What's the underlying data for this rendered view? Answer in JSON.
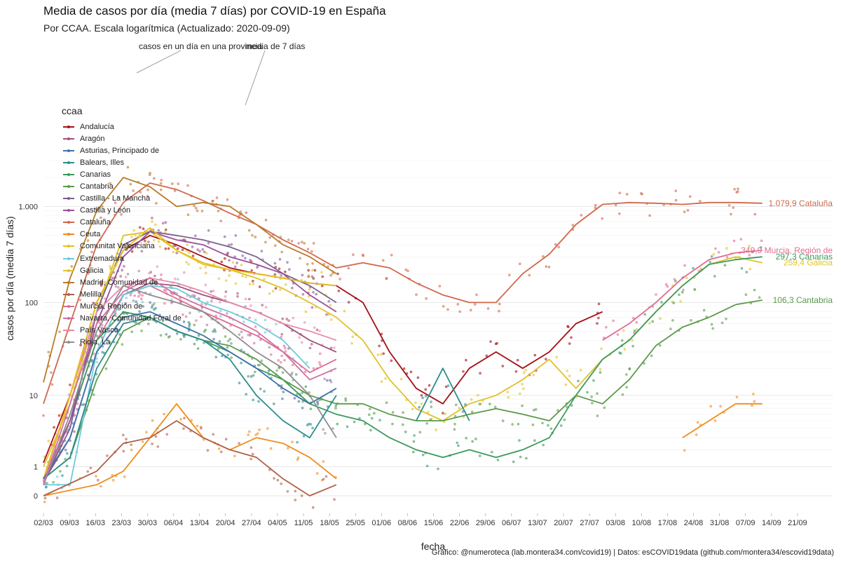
{
  "header": {
    "title": "Media de casos por día (media 7 días) por COVID-19 en España",
    "subtitle": "Por CCAA. Escala logarítmica  (Actualizado: 2020-09-09)"
  },
  "caption": "Gráfico: @numeroteca (lab.montera34.com/covid19) | Datos: esCOVID19data (github.com/montera34/escovid19data)",
  "legend": {
    "title": "ccaa",
    "items": [
      {
        "label": "Andalucía",
        "color": "#a50f15"
      },
      {
        "label": "Aragón",
        "color": "#a0517a"
      },
      {
        "label": "Asturias, Principado de",
        "color": "#3f72a8"
      },
      {
        "label": "Balears, Illes",
        "color": "#2c8c8c"
      },
      {
        "label": "Canarias",
        "color": "#3a9a5b"
      },
      {
        "label": "Cantabria",
        "color": "#5b9a4b"
      },
      {
        "label": "Castilla - La Mancha",
        "color": "#7c5f92"
      },
      {
        "label": "Castilla y León",
        "color": "#9a4e9a"
      },
      {
        "label": "Cataluña",
        "color": "#d0684a"
      },
      {
        "label": "Ceuta",
        "color": "#f08c1a"
      },
      {
        "label": "Comunitat Valenciana",
        "color": "#e8c21a"
      },
      {
        "label": "Extremadura",
        "color": "#6ecbdc"
      },
      {
        "label": "Galicia",
        "color": "#e0c12a"
      },
      {
        "label": "Madrid, Comunidad de",
        "color": "#b87b2a"
      },
      {
        "label": "Melilla",
        "color": "#b06048"
      },
      {
        "label": "Murcia, Región de",
        "color": "#e06c93"
      },
      {
        "label": "Navarra, Comunidad Foral de",
        "color": "#d070a0"
      },
      {
        "label": "País Vasco",
        "color": "#e88aa8"
      },
      {
        "label": "Rioja, La",
        "color": "#8d8d8d"
      }
    ]
  },
  "annotations": {
    "points": "casos en un día en una provincia",
    "line": "media de 7 días"
  },
  "chart_data": {
    "type": "line",
    "title": "Media de casos por día (media 7 días) por COVID-19 en España",
    "subtitle": "Por CCAA. Escala logarítmica  (Actualizado: 2020-09-09)",
    "xlabel": "fecha",
    "ylabel": "casos por día (media 7 días)",
    "y_scale": "log",
    "ylim": [
      0,
      4000
    ],
    "y_ticks": [
      {
        "value": 0,
        "label": "0"
      },
      {
        "value": 1,
        "label": "1"
      },
      {
        "value": 10,
        "label": "10"
      },
      {
        "value": 100,
        "label": "100"
      },
      {
        "value": 1000,
        "label": "1.000"
      }
    ],
    "x_range": [
      "2020-03-02",
      "2020-09-24"
    ],
    "x_ticks": [
      "02/03",
      "09/03",
      "16/03",
      "23/03",
      "30/03",
      "06/04",
      "13/04",
      "20/04",
      "27/04",
      "04/05",
      "11/05",
      "18/05",
      "25/05",
      "01/06",
      "08/06",
      "15/06",
      "22/06",
      "29/06",
      "06/07",
      "13/07",
      "20/07",
      "27/07",
      "03/08",
      "10/08",
      "17/08",
      "24/08",
      "31/08",
      "07/09",
      "14/09",
      "21/09"
    ],
    "grid": true,
    "legend_position": "left",
    "series": [
      {
        "name": "Cataluña",
        "color": "#d0684a",
        "end_label": "1.079,9 Cataluña",
        "x": [
          "2020-03-02",
          "2020-03-09",
          "2020-03-16",
          "2020-03-23",
          "2020-03-30",
          "2020-04-06",
          "2020-04-13",
          "2020-04-20",
          "2020-04-27",
          "2020-05-04",
          "2020-05-11",
          "2020-05-18",
          "2020-05-25",
          "2020-06-01",
          "2020-06-08",
          "2020-06-15",
          "2020-06-22",
          "2020-06-29",
          "2020-07-06",
          "2020-07-13",
          "2020-07-20",
          "2020-07-27",
          "2020-08-03",
          "2020-08-10",
          "2020-08-17",
          "2020-08-24",
          "2020-08-31",
          "2020-09-07"
        ],
        "y": [
          8,
          60,
          400,
          1100,
          1750,
          1500,
          1150,
          850,
          650,
          450,
          330,
          230,
          260,
          230,
          160,
          120,
          100,
          100,
          200,
          320,
          650,
          1050,
          1100,
          1080,
          1050,
          1100,
          1100,
          1080
        ]
      },
      {
        "name": "Madrid, Comunidad de",
        "color": "#b87b2a",
        "x": [
          "2020-03-02",
          "2020-03-09",
          "2020-03-16",
          "2020-03-23",
          "2020-03-30",
          "2020-04-06",
          "2020-04-13",
          "2020-04-20",
          "2020-04-27",
          "2020-05-04",
          "2020-05-11",
          "2020-05-18"
        ],
        "y": [
          14,
          180,
          900,
          2000,
          1600,
          1000,
          1100,
          1000,
          650,
          400,
          300,
          200
        ]
      },
      {
        "name": "Andalucía",
        "color": "#a50f15",
        "x": [
          "2020-03-02",
          "2020-03-09",
          "2020-03-16",
          "2020-03-23",
          "2020-03-30",
          "2020-04-06",
          "2020-04-13",
          "2020-04-20",
          "2020-04-27",
          "2020-05-04",
          "2020-05-11",
          "2020-05-18",
          "2020-05-25",
          "2020-06-01",
          "2020-06-08",
          "2020-06-15",
          "2020-06-22",
          "2020-06-29",
          "2020-07-06",
          "2020-07-13",
          "2020-07-20",
          "2020-07-27"
        ],
        "y": [
          1.2,
          10,
          100,
          350,
          500,
          400,
          300,
          230,
          200,
          180,
          160,
          150,
          100,
          30,
          12,
          8,
          20,
          30,
          20,
          30,
          60,
          80
        ]
      },
      {
        "name": "Galicia",
        "color": "#e0c12a",
        "end_label": "259,4 Galicia",
        "x": [
          "2020-03-02",
          "2020-03-09",
          "2020-03-16",
          "2020-03-23",
          "2020-03-30",
          "2020-04-06",
          "2020-04-13",
          "2020-04-20",
          "2020-04-27",
          "2020-05-04",
          "2020-05-11",
          "2020-05-18",
          "2020-05-25",
          "2020-06-01",
          "2020-06-08",
          "2020-06-15",
          "2020-06-22",
          "2020-06-29",
          "2020-07-06",
          "2020-07-13",
          "2020-07-20",
          "2020-07-27",
          "2020-08-03",
          "2020-08-10",
          "2020-08-17",
          "2020-08-24",
          "2020-08-31",
          "2020-09-07"
        ],
        "y": [
          1,
          8,
          80,
          500,
          550,
          350,
          260,
          220,
          180,
          140,
          100,
          70,
          40,
          15,
          7,
          5,
          8,
          10,
          15,
          25,
          12,
          25,
          40,
          80,
          150,
          250,
          300,
          260
        ]
      },
      {
        "name": "Murcia, Región de",
        "color": "#e06c93",
        "end_label": "349,9 Murcia, Región de",
        "x": [
          "2020-03-02",
          "2020-03-09",
          "2020-03-16",
          "2020-03-23",
          "2020-03-30",
          "2020-04-06",
          "2020-04-13",
          "2020-04-20",
          "2020-04-27",
          "2020-05-04",
          "2020-05-11",
          "2020-05-18",
          "2020-07-27",
          "2020-08-03",
          "2020-08-10",
          "2020-08-17",
          "2020-08-24",
          "2020-08-31",
          "2020-09-07"
        ],
        "y": [
          0.3,
          5,
          40,
          120,
          150,
          110,
          80,
          60,
          45,
          30,
          18,
          25,
          40,
          60,
          100,
          180,
          280,
          330,
          350
        ]
      },
      {
        "name": "Canarias",
        "color": "#3a9a5b",
        "end_label": "297,3 Canarias",
        "x": [
          "2020-03-02",
          "2020-03-09",
          "2020-03-16",
          "2020-03-23",
          "2020-03-30",
          "2020-04-06",
          "2020-04-13",
          "2020-04-20",
          "2020-04-27",
          "2020-05-04",
          "2020-05-11",
          "2020-05-18",
          "2020-05-25",
          "2020-06-01",
          "2020-06-08",
          "2020-06-15",
          "2020-06-22",
          "2020-06-29",
          "2020-07-06",
          "2020-07-13",
          "2020-07-20",
          "2020-07-27",
          "2020-08-03",
          "2020-08-10",
          "2020-08-17",
          "2020-08-24",
          "2020-08-31",
          "2020-09-07"
        ],
        "y": [
          0.5,
          5,
          40,
          80,
          70,
          50,
          40,
          30,
          20,
          15,
          8,
          6,
          5,
          3,
          2,
          1.5,
          2,
          1.5,
          2,
          3,
          10,
          25,
          40,
          80,
          150,
          250,
          280,
          300
        ]
      },
      {
        "name": "Cantabria",
        "color": "#5b9a4b",
        "end_label": "106,3 Cantabria",
        "x": [
          "2020-03-02",
          "2020-03-09",
          "2020-03-16",
          "2020-03-23",
          "2020-03-30",
          "2020-04-06",
          "2020-04-13",
          "2020-04-20",
          "2020-04-27",
          "2020-05-04",
          "2020-05-11",
          "2020-05-18",
          "2020-05-25",
          "2020-06-01",
          "2020-06-08",
          "2020-06-15",
          "2020-06-22",
          "2020-06-29",
          "2020-07-06",
          "2020-07-13",
          "2020-07-20",
          "2020-07-27",
          "2020-08-03",
          "2020-08-10",
          "2020-08-17",
          "2020-08-24",
          "2020-08-31",
          "2020-09-07"
        ],
        "y": [
          0.5,
          1.5,
          15,
          50,
          70,
          50,
          40,
          35,
          25,
          15,
          10,
          8,
          8,
          6,
          5,
          5,
          6,
          7,
          6,
          5,
          10,
          8,
          15,
          35,
          55,
          70,
          95,
          106
        ]
      },
      {
        "name": "Castilla y León",
        "color": "#9a4e9a",
        "x": [
          "2020-03-02",
          "2020-03-09",
          "2020-03-16",
          "2020-03-23",
          "2020-03-30",
          "2020-04-06",
          "2020-04-13",
          "2020-04-20",
          "2020-04-27",
          "2020-05-04",
          "2020-05-11",
          "2020-05-18"
        ],
        "y": [
          0.5,
          5,
          60,
          300,
          550,
          450,
          400,
          300,
          250,
          200,
          120,
          80
        ]
      },
      {
        "name": "Castilla - La Mancha",
        "color": "#7c5f92",
        "x": [
          "2020-03-02",
          "2020-03-09",
          "2020-03-16",
          "2020-03-23",
          "2020-03-30",
          "2020-04-06",
          "2020-04-13",
          "2020-04-20",
          "2020-04-27",
          "2020-05-04",
          "2020-05-11",
          "2020-05-18"
        ],
        "y": [
          0.4,
          4,
          80,
          400,
          550,
          500,
          450,
          380,
          300,
          200,
          150,
          100
        ]
      },
      {
        "name": "Aragón",
        "color": "#a0517a",
        "x": [
          "2020-03-02",
          "2020-03-09",
          "2020-03-16",
          "2020-03-23",
          "2020-03-30",
          "2020-04-06",
          "2020-04-13",
          "2020-04-20",
          "2020-04-27",
          "2020-05-04",
          "2020-05-11",
          "2020-05-18"
        ],
        "y": [
          0.4,
          3,
          30,
          120,
          160,
          150,
          120,
          100,
          80,
          60,
          40,
          30
        ]
      },
      {
        "name": "País Vasco",
        "color": "#e88aa8",
        "x": [
          "2020-03-02",
          "2020-03-09",
          "2020-03-16",
          "2020-03-23",
          "2020-03-30",
          "2020-04-06",
          "2020-04-13",
          "2020-04-20",
          "2020-04-27",
          "2020-05-04",
          "2020-05-11",
          "2020-05-18"
        ],
        "y": [
          0.4,
          10,
          80,
          150,
          180,
          160,
          130,
          100,
          80,
          60,
          50,
          40
        ]
      },
      {
        "name": "Comunitat Valenciana",
        "color": "#e8c21a",
        "x": [
          "2020-03-02",
          "2020-03-09",
          "2020-03-16",
          "2020-03-23",
          "2020-03-30",
          "2020-04-06",
          "2020-04-13",
          "2020-04-20",
          "2020-04-27",
          "2020-05-04",
          "2020-05-11",
          "2020-05-18"
        ],
        "y": [
          0.5,
          10,
          100,
          350,
          600,
          350,
          250,
          220,
          200,
          180,
          160,
          150
        ]
      },
      {
        "name": "Extremadura",
        "color": "#6ecbdc",
        "x": [
          "2020-03-02",
          "2020-03-09",
          "2020-03-16",
          "2020-03-23",
          "2020-03-30",
          "2020-04-06",
          "2020-04-13",
          "2020-04-20",
          "2020-04-27",
          "2020-05-04",
          "2020-05-11"
        ],
        "y": [
          0.3,
          0.3,
          30,
          120,
          150,
          140,
          100,
          80,
          60,
          40,
          20
        ]
      },
      {
        "name": "Asturias, Principado de",
        "color": "#3f72a8",
        "x": [
          "2020-03-02",
          "2020-03-09",
          "2020-03-16",
          "2020-03-23",
          "2020-03-30",
          "2020-04-06",
          "2020-04-13",
          "2020-04-20",
          "2020-04-27",
          "2020-05-04",
          "2020-05-11",
          "2020-05-18"
        ],
        "y": [
          0.5,
          3,
          30,
          70,
          80,
          60,
          45,
          30,
          20,
          12,
          8,
          12
        ]
      },
      {
        "name": "Rioja, La",
        "color": "#8d8d8d",
        "x": [
          "2020-03-02",
          "2020-03-09",
          "2020-03-16",
          "2020-03-23",
          "2020-03-30",
          "2020-04-06",
          "2020-04-13",
          "2020-04-20",
          "2020-04-27",
          "2020-05-04",
          "2020-05-11",
          "2020-05-18"
        ],
        "y": [
          0.3,
          6,
          50,
          150,
          120,
          100,
          80,
          50,
          30,
          20,
          10,
          3
        ]
      },
      {
        "name": "Balears, Illes",
        "color": "#2c8c8c",
        "x": [
          "2020-03-02",
          "2020-03-09",
          "2020-03-16",
          "2020-03-23",
          "2020-03-30",
          "2020-04-06",
          "2020-04-13",
          "2020-04-20",
          "2020-04-27",
          "2020-05-04",
          "2020-05-11",
          "2020-05-18",
          "2020-06-08",
          "2020-06-15",
          "2020-06-22"
        ],
        "y": [
          0.5,
          1.5,
          20,
          60,
          70,
          50,
          40,
          25,
          10,
          5,
          3,
          10,
          5,
          20,
          5
        ]
      },
      {
        "name": "Navarra, Comunidad Foral de",
        "color": "#d070a0",
        "x": [
          "2020-03-02",
          "2020-03-09",
          "2020-03-16",
          "2020-03-23",
          "2020-03-30",
          "2020-04-06",
          "2020-04-13",
          "2020-04-20",
          "2020-04-27",
          "2020-05-04",
          "2020-05-11",
          "2020-05-18"
        ],
        "y": [
          0.3,
          8,
          60,
          130,
          180,
          120,
          90,
          70,
          50,
          30,
          15,
          20
        ]
      },
      {
        "name": "Ceuta",
        "color": "#f08c1a",
        "x": [
          "2020-03-02",
          "2020-03-16",
          "2020-03-23",
          "2020-03-30",
          "2020-04-06",
          "2020-04-13",
          "2020-04-20",
          "2020-04-27",
          "2020-05-04",
          "2020-05-11",
          "2020-05-18",
          "2020-08-17",
          "2020-08-24",
          "2020-08-31",
          "2020-09-07"
        ],
        "y": [
          0,
          0.3,
          0.8,
          3,
          8,
          3,
          2,
          3,
          2.5,
          1.5,
          0.5,
          3,
          5,
          8,
          8
        ]
      },
      {
        "name": "Melilla",
        "color": "#b06048",
        "x": [
          "2020-03-02",
          "2020-03-16",
          "2020-03-23",
          "2020-03-30",
          "2020-04-06",
          "2020-04-13",
          "2020-04-20",
          "2020-04-27",
          "2020-05-04",
          "2020-05-11",
          "2020-05-18"
        ],
        "y": [
          0,
          0.8,
          2.5,
          3,
          5,
          3,
          2,
          1.5,
          0.5,
          0,
          0.3
        ]
      }
    ]
  }
}
